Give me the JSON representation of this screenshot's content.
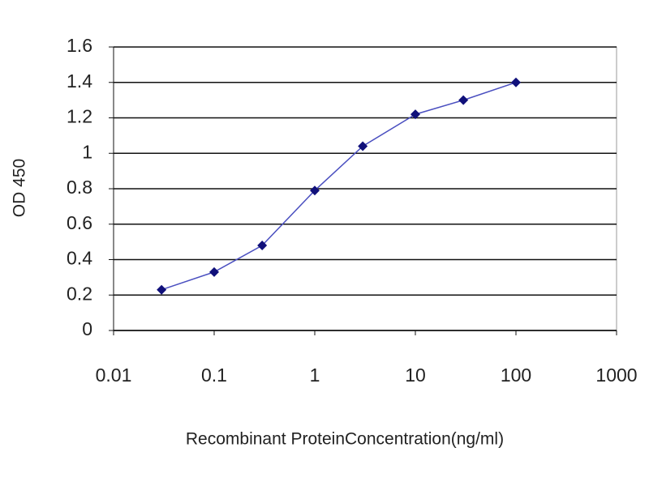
{
  "chart_data": {
    "type": "line",
    "x_label": "Recombinant ProteinConcentration(ng/ml)",
    "y_label": "OD 450",
    "x": [
      0.03,
      0.1,
      0.3,
      1,
      3,
      10,
      30,
      100
    ],
    "values": [
      0.23,
      0.33,
      0.48,
      0.79,
      1.04,
      1.22,
      1.3,
      1.4
    ],
    "color": "#4a4fc0",
    "marker_color": "#10107a",
    "xscale": "log",
    "xlim": [
      0.01,
      1000
    ],
    "xticks": [
      0.01,
      0.1,
      1,
      10,
      100,
      1000
    ],
    "ylim": [
      0,
      1.6
    ],
    "yticks": [
      0,
      0.2,
      0.4,
      0.6,
      0.8,
      1,
      1.2,
      1.4,
      1.6
    ],
    "grid": true
  }
}
